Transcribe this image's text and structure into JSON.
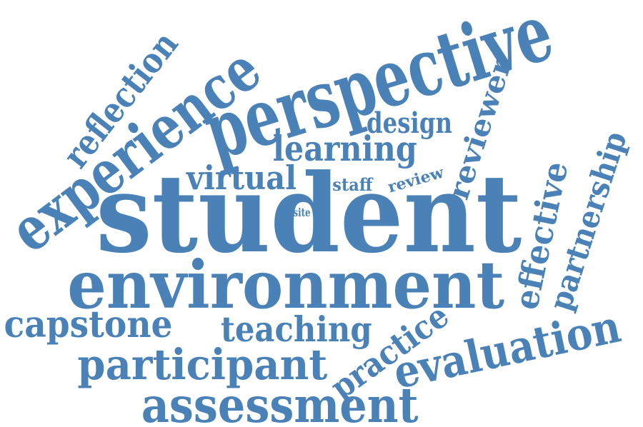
{
  "cloud": {
    "color": "#4a82b8",
    "background": "#ffffff",
    "words": {
      "student": "student",
      "environment": "environment",
      "perspective": "perspective",
      "experience": "experience",
      "assessment": "assessment",
      "participant": "participant",
      "evaluation": "evaluation",
      "reflection": "reflection",
      "reviewer": "reviewer",
      "partnership": "partnership",
      "effective": "effective",
      "practice": "practice",
      "teaching": "teaching",
      "capstone": "capstone",
      "learning": "learning",
      "virtual": "virtual",
      "design": "design",
      "staff": "staff",
      "review": "review",
      "site": "site"
    }
  }
}
